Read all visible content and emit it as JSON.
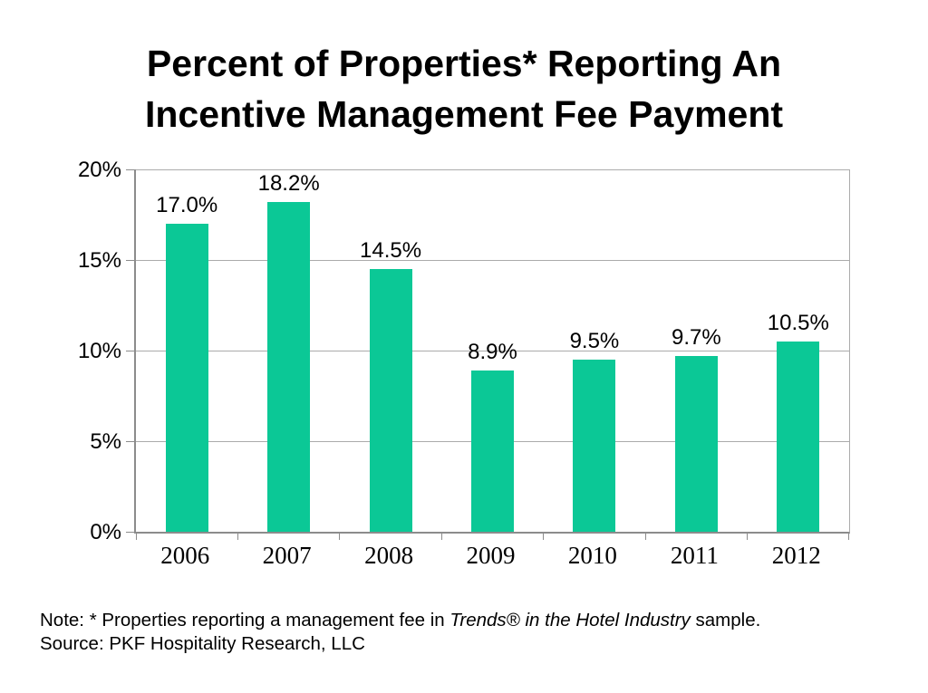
{
  "title": {
    "line1": "Percent of Properties* Reporting An",
    "line2": "Incentive Management Fee Payment"
  },
  "chart_data": {
    "type": "bar",
    "title": "Percent of Properties* Reporting An Incentive Management Fee Payment",
    "categories": [
      "2006",
      "2007",
      "2008",
      "2009",
      "2010",
      "2011",
      "2012"
    ],
    "values": [
      17.0,
      18.2,
      14.5,
      8.9,
      9.5,
      9.7,
      10.5
    ],
    "data_labels": [
      "17.0%",
      "18.2%",
      "14.5%",
      "8.9%",
      "9.5%",
      "9.7%",
      "10.5%"
    ],
    "xlabel": "",
    "ylabel": "",
    "ylim": [
      0,
      20
    ],
    "yticks": [
      0,
      5,
      10,
      15,
      20
    ],
    "ytick_labels": [
      "0%",
      "5%",
      "10%",
      "15%",
      "20%"
    ],
    "grid": true,
    "legend": false,
    "bar_color": "#0bc896"
  },
  "colors": {
    "bar": "#0bc896",
    "gridline": "#ababab",
    "axis": "#8c8c8c",
    "text": "#000000"
  },
  "footer": {
    "note_prefix": "Note: * Properties reporting a management fee in ",
    "note_italic": "Trends® in the Hotel Industry",
    "note_suffix": " sample.",
    "source": "Source: PKF Hospitality Research, LLC"
  }
}
